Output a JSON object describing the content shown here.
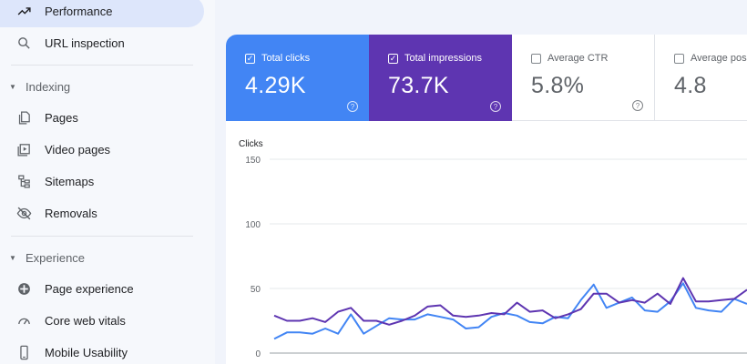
{
  "sidebar": {
    "items": [
      {
        "label": "Performance",
        "icon": "trending-up-icon",
        "active": true
      },
      {
        "label": "URL inspection",
        "icon": "search-icon"
      }
    ],
    "sections": [
      {
        "label": "Indexing",
        "items": [
          {
            "label": "Pages",
            "icon": "pages-icon"
          },
          {
            "label": "Video pages",
            "icon": "video-pages-icon"
          },
          {
            "label": "Sitemaps",
            "icon": "sitemap-icon"
          },
          {
            "label": "Removals",
            "icon": "visibility-off-icon"
          }
        ]
      },
      {
        "label": "Experience",
        "items": [
          {
            "label": "Page experience",
            "icon": "page-experience-icon"
          },
          {
            "label": "Core web vitals",
            "icon": "gauge-icon"
          },
          {
            "label": "Mobile Usability",
            "icon": "smartphone-icon"
          }
        ]
      }
    ]
  },
  "metrics": [
    {
      "label": "Total clicks",
      "value": "4.29K",
      "checked": true,
      "color": "#4285f4"
    },
    {
      "label": "Total impressions",
      "value": "73.7K",
      "checked": true,
      "color": "#5e35b1"
    },
    {
      "label": "Average CTR",
      "value": "5.8%",
      "checked": false
    },
    {
      "label": "Average pos",
      "value": "4.8",
      "checked": false
    }
  ],
  "chart_data": {
    "type": "line",
    "ylabel": "Clicks",
    "yticks": [
      150,
      100,
      50,
      0
    ],
    "ylim": [
      0,
      150
    ],
    "grid": true,
    "series": [
      {
        "color": "#4285f4",
        "values": [
          11,
          16,
          16,
          15,
          19,
          15,
          30,
          15,
          21,
          27,
          26,
          26,
          30,
          28,
          26,
          19,
          20,
          28,
          31,
          29,
          24,
          23,
          28,
          27,
          41,
          53,
          35,
          39,
          43,
          33,
          32,
          40,
          54,
          35,
          33,
          32,
          42,
          38
        ]
      },
      {
        "color": "#5e35b1",
        "values": [
          29,
          25,
          25,
          27,
          24,
          32,
          35,
          25,
          25,
          22,
          25,
          29,
          36,
          37,
          29,
          28,
          29,
          31,
          30,
          39,
          32,
          33,
          27,
          30,
          34,
          46,
          46,
          39,
          41,
          39,
          46,
          38,
          58,
          40,
          40,
          41,
          42,
          49
        ]
      }
    ]
  }
}
